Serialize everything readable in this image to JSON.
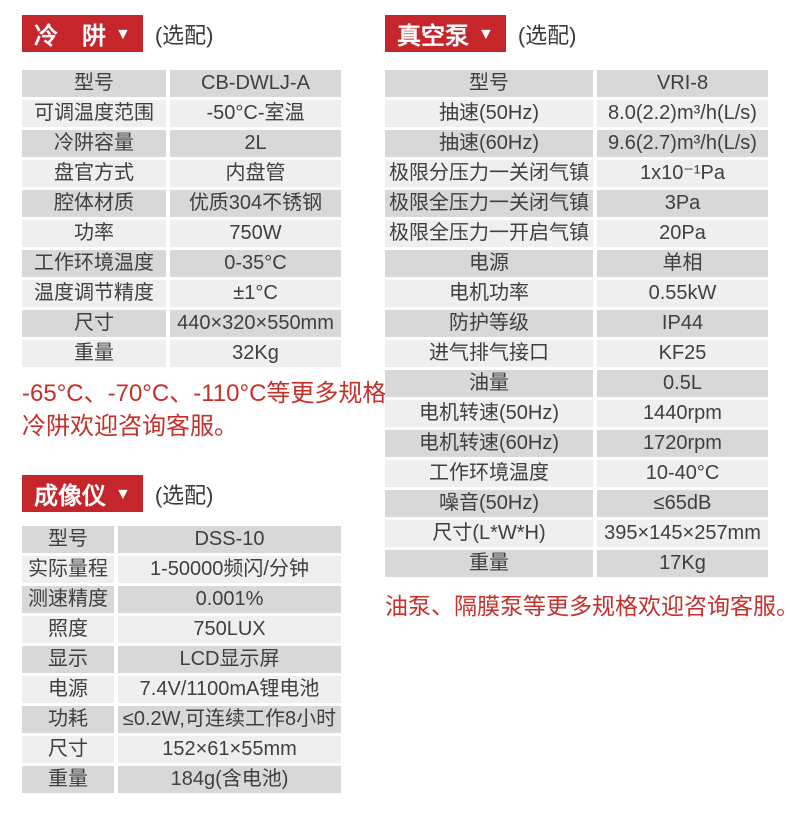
{
  "colors": {
    "badge_red": "#c4262b",
    "note_red": "#c62f2a",
    "row_dark": "#d8d8d8",
    "row_light": "#efefef",
    "text": "#3f3f3f"
  },
  "cold_trap": {
    "title": "冷　阱",
    "arrow": "▼",
    "optional": "(选配)",
    "rows": [
      {
        "label": "型号",
        "value": "CB-DWLJ-A"
      },
      {
        "label": "可调温度范围",
        "value": "-50°C-室温"
      },
      {
        "label": "冷阱容量",
        "value": "2L"
      },
      {
        "label": "盘官方式",
        "value": "内盘管"
      },
      {
        "label": "腔体材质",
        "value": "优质304不锈钢"
      },
      {
        "label": "功率",
        "value": "750W"
      },
      {
        "label": "工作环境温度",
        "value": "0-35°C"
      },
      {
        "label": "温度调节精度",
        "value": "±1°C"
      },
      {
        "label": "尺寸",
        "value": "440×320×550mm"
      },
      {
        "label": "重量",
        "value": "32Kg"
      }
    ],
    "note_line1": "-65°C、-70°C、-110°C等更多规格",
    "note_line2": "冷阱欢迎咨询客服。"
  },
  "imager": {
    "title": "成像仪",
    "arrow": "▼",
    "optional": "(选配)",
    "rows": [
      {
        "label": "型号",
        "value": "DSS-10"
      },
      {
        "label": "实际量程",
        "value": "1-50000频闪/分钟"
      },
      {
        "label": "测速精度",
        "value": "0.001%"
      },
      {
        "label": "照度",
        "value": "750LUX"
      },
      {
        "label": "显示",
        "value": "LCD显示屏"
      },
      {
        "label": "电源",
        "value": "7.4V/1100mA锂电池"
      },
      {
        "label": "功耗",
        "value": "≤0.2W,可连续工作8小时"
      },
      {
        "label": "尺寸",
        "value": "152×61×55mm"
      },
      {
        "label": "重量",
        "value": "184g(含电池)"
      }
    ]
  },
  "vacuum_pump": {
    "title": "真空泵",
    "arrow": "▼",
    "optional": "(选配)",
    "rows": [
      {
        "label": "型号",
        "value": "VRI-8"
      },
      {
        "label": "抽速(50Hz)",
        "value": "8.0(2.2)m³/h(L/s)"
      },
      {
        "label": "抽速(60Hz)",
        "value": "9.6(2.7)m³/h(L/s)"
      },
      {
        "label": "极限分压力一关闭气镇",
        "value": "1x10⁻¹Pa"
      },
      {
        "label": "极限全压力一关闭气镇",
        "value": "3Pa"
      },
      {
        "label": "极限全压力一开启气镇",
        "value": "20Pa"
      },
      {
        "label": "电源",
        "value": "单相"
      },
      {
        "label": "电机功率",
        "value": "0.55kW"
      },
      {
        "label": "防护等级",
        "value": "IP44"
      },
      {
        "label": "进气排气接口",
        "value": "KF25"
      },
      {
        "label": "油量",
        "value": "0.5L"
      },
      {
        "label": "电机转速(50Hz)",
        "value": "1440rpm"
      },
      {
        "label": "电机转速(60Hz)",
        "value": "1720rpm"
      },
      {
        "label": "工作环境温度",
        "value": "10-40°C"
      },
      {
        "label": "噪音(50Hz)",
        "value": "≤65dB"
      },
      {
        "label": "尺寸(L*W*H)",
        "value": "395×145×257mm"
      },
      {
        "label": "重量",
        "value": "17Kg"
      }
    ],
    "note": "油泵、隔膜泵等更多规格欢迎咨询客服。"
  }
}
